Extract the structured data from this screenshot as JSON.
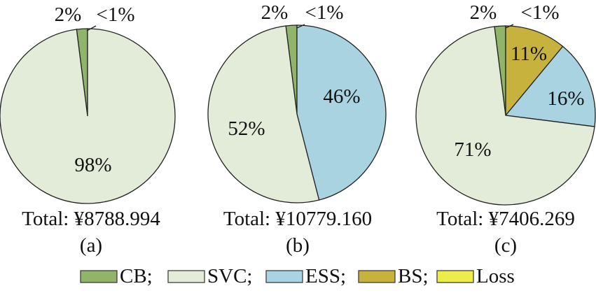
{
  "legend": {
    "items": [
      {
        "label": "CB;",
        "color": "#8fb46a"
      },
      {
        "label": "SVC;",
        "color": "#e3ecd8"
      },
      {
        "label": "ESS;",
        "color": "#a9d3e0"
      },
      {
        "label": "BS;",
        "color": "#c7b23d"
      },
      {
        "label": "Loss",
        "color": "#ecec4a"
      }
    ]
  },
  "chart_data": [
    {
      "type": "pie",
      "panel_label": "(a)",
      "total_label": "Total: ¥8788.994",
      "slices": [
        {
          "category": "CB",
          "value": 2,
          "label": "2%"
        },
        {
          "category": "SVC",
          "value": 98,
          "label": "98%"
        },
        {
          "category": "Loss",
          "value": 0,
          "label": "<1%"
        }
      ]
    },
    {
      "type": "pie",
      "panel_label": "(b)",
      "total_label": "Total: ¥10779.160",
      "slices": [
        {
          "category": "CB",
          "value": 2,
          "label": "2%"
        },
        {
          "category": "SVC",
          "value": 52,
          "label": "52%"
        },
        {
          "category": "ESS",
          "value": 46,
          "label": "46%"
        },
        {
          "category": "Loss",
          "value": 0,
          "label": "<1%"
        }
      ]
    },
    {
      "type": "pie",
      "panel_label": "(c)",
      "total_label": "Total: ¥7406.269",
      "slices": [
        {
          "category": "CB",
          "value": 2,
          "label": "2%"
        },
        {
          "category": "SVC",
          "value": 71,
          "label": "71%"
        },
        {
          "category": "ESS",
          "value": 16,
          "label": "16%"
        },
        {
          "category": "BS",
          "value": 11,
          "label": "11%"
        },
        {
          "category": "Loss",
          "value": 0,
          "label": "<1%"
        }
      ]
    }
  ]
}
